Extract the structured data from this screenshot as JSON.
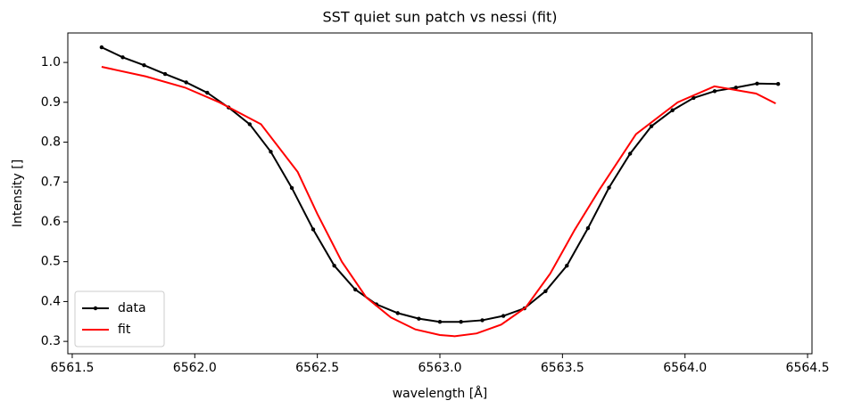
{
  "chart_data": {
    "type": "line",
    "title": "SST quiet sun patch vs nessi (fit)",
    "xlabel": "wavelength [Å]",
    "ylabel": "Intensity []",
    "xlim": [
      6561.482,
      6564.518
    ],
    "ylim": [
      0.269,
      1.074
    ],
    "xticks": [
      {
        "value": 6561.5,
        "label": "6561.5"
      },
      {
        "value": 6562.0,
        "label": "6562.0"
      },
      {
        "value": 6562.5,
        "label": "6562.5"
      },
      {
        "value": 6563.0,
        "label": "6563.0"
      },
      {
        "value": 6563.5,
        "label": "6563.5"
      },
      {
        "value": 6564.0,
        "label": "6564.0"
      },
      {
        "value": 6564.5,
        "label": "6564.5"
      }
    ],
    "yticks": [
      0.3,
      0.4,
      0.5,
      0.6,
      0.7,
      0.8,
      0.9,
      {
        "value": 1.0,
        "label": "1.0"
      }
    ],
    "legend": "lower left",
    "series": [
      {
        "name": "data",
        "color": "#000000",
        "marker": true,
        "x": [
          6561.62,
          6561.706,
          6561.793,
          6561.879,
          6561.965,
          6562.051,
          6562.138,
          6562.224,
          6562.31,
          6562.396,
          6562.483,
          6562.569,
          6562.655,
          6562.741,
          6562.828,
          6562.914,
          6563.0,
          6563.086,
          6563.173,
          6563.259,
          6563.345,
          6563.431,
          6563.518,
          6563.604,
          6563.69,
          6563.776,
          6563.863,
          6563.949,
          6564.035,
          6564.121,
          6564.208,
          6564.294,
          6564.38
        ],
        "values": [
          1.038,
          1.013,
          0.993,
          0.971,
          0.95,
          0.924,
          0.887,
          0.845,
          0.776,
          0.685,
          0.581,
          0.49,
          0.43,
          0.393,
          0.371,
          0.357,
          0.349,
          0.349,
          0.353,
          0.364,
          0.383,
          0.426,
          0.49,
          0.584,
          0.686,
          0.771,
          0.84,
          0.88,
          0.911,
          0.928,
          0.937,
          0.947,
          0.946
        ]
      },
      {
        "name": "fit",
        "color": "#ff0000",
        "marker": false,
        "x": [
          6561.62,
          6561.8,
          6561.96,
          6562.1,
          6562.27,
          6562.42,
          6562.5,
          6562.6,
          6562.7,
          6562.8,
          6562.9,
          6563.0,
          6563.06,
          6563.15,
          6563.25,
          6563.35,
          6563.45,
          6563.55,
          6563.65,
          6563.8,
          6563.97,
          6564.12,
          6564.29,
          6564.37
        ],
        "values": [
          0.989,
          0.965,
          0.937,
          0.9,
          0.845,
          0.725,
          0.62,
          0.5,
          0.41,
          0.36,
          0.33,
          0.316,
          0.313,
          0.32,
          0.342,
          0.385,
          0.47,
          0.58,
          0.68,
          0.82,
          0.9,
          0.94,
          0.922,
          0.897
        ]
      }
    ]
  }
}
